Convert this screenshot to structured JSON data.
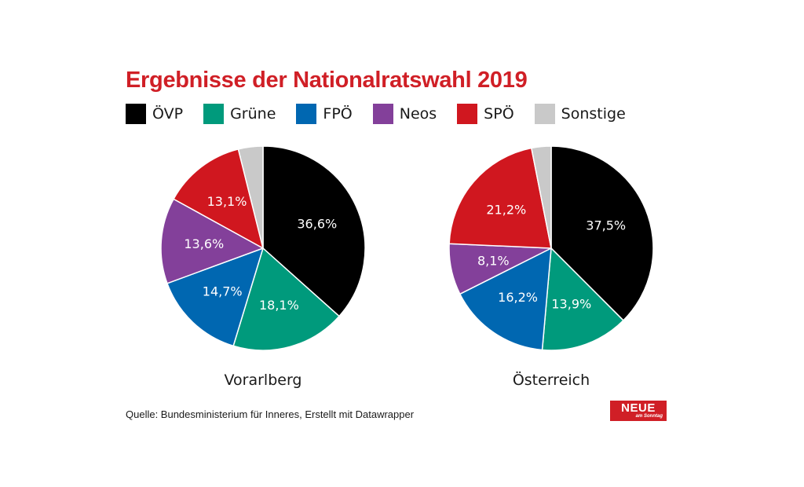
{
  "chart_data": {
    "type": "pie",
    "title": "Ergebnisse der Nationalratswahl 2019",
    "legend": [
      {
        "name": "ÖVP",
        "color": "#000000"
      },
      {
        "name": "Grüne",
        "color": "#009a7c"
      },
      {
        "name": "FPÖ",
        "color": "#0067b1"
      },
      {
        "name": "Neos",
        "color": "#83409a"
      },
      {
        "name": "SPÖ",
        "color": "#d0171f"
      },
      {
        "name": "Sonstige",
        "color": "#c9c9c9"
      }
    ],
    "charts": [
      {
        "region": "Vorarlberg",
        "slices": [
          {
            "party": "ÖVP",
            "value": 36.6,
            "label": "36,6%"
          },
          {
            "party": "Grüne",
            "value": 18.1,
            "label": "18,1%"
          },
          {
            "party": "FPÖ",
            "value": 14.7,
            "label": "14,7%"
          },
          {
            "party": "Neos",
            "value": 13.6,
            "label": "13,6%"
          },
          {
            "party": "SPÖ",
            "value": 13.1,
            "label": "13,1%"
          },
          {
            "party": "Sonstige",
            "value": 3.9,
            "label": ""
          }
        ]
      },
      {
        "region": "Österreich",
        "slices": [
          {
            "party": "ÖVP",
            "value": 37.5,
            "label": "37,5%"
          },
          {
            "party": "Grüne",
            "value": 13.9,
            "label": "13,9%"
          },
          {
            "party": "FPÖ",
            "value": 16.2,
            "label": "16,2%"
          },
          {
            "party": "Neos",
            "value": 8.1,
            "label": "8,1%"
          },
          {
            "party": "SPÖ",
            "value": 21.2,
            "label": "21,2%"
          },
          {
            "party": "Sonstige",
            "value": 3.1,
            "label": ""
          }
        ]
      }
    ]
  },
  "source": "Quelle: Bundesministerium für Inneres, Erstellt mit Datawrapper",
  "logo": {
    "main": "NEUE",
    "sub": "am Sonntag"
  }
}
